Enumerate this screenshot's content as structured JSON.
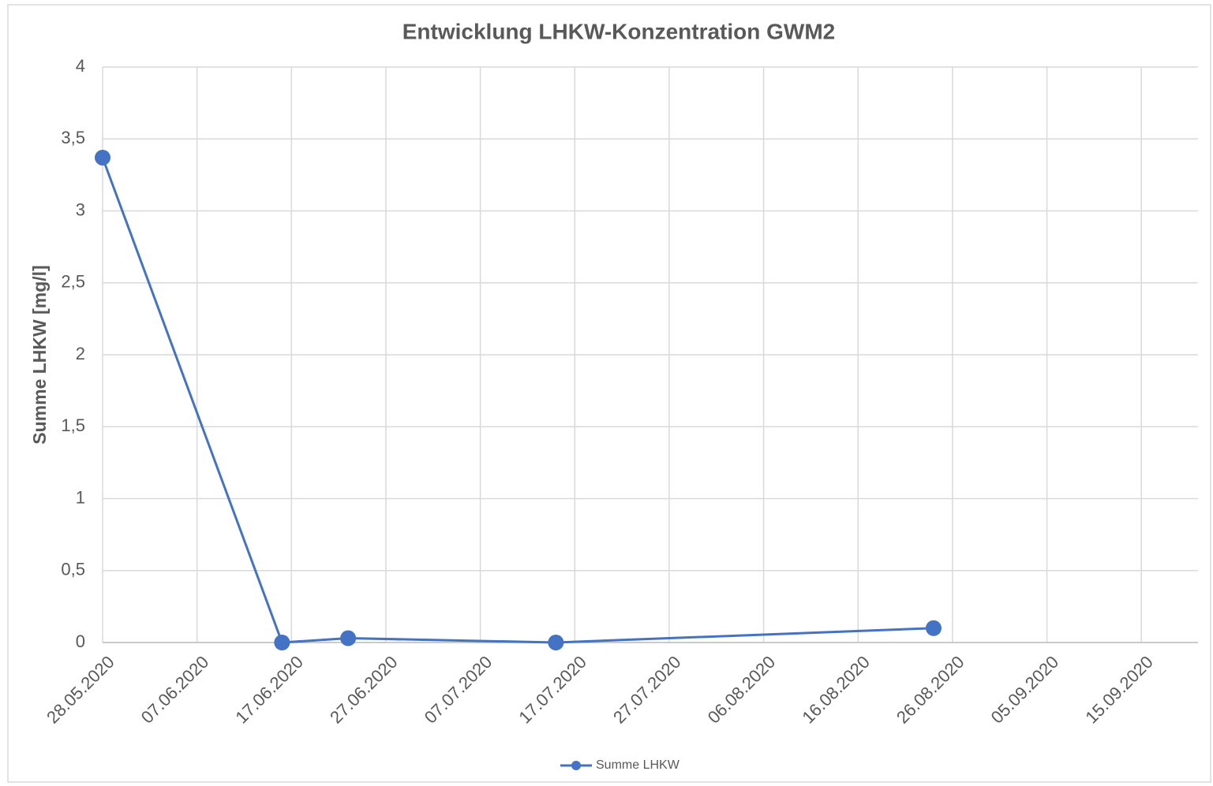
{
  "chart_data": {
    "type": "line",
    "title": "Entwicklung LHKW-Konzentration GWM2",
    "y_label": "Summe LHKW [mg/l]",
    "x": [
      "28.05.2020",
      "16.06.2020",
      "23.06.2020",
      "15.07.2020",
      "24.08.2020"
    ],
    "series": [
      {
        "name": "Summe LHKW",
        "color": "#4472c4",
        "values": [
          3.37,
          0,
          0.03,
          0,
          0.1
        ]
      }
    ],
    "xlim": [
      "28.05.2020",
      "21.09.2020"
    ],
    "xticks": [
      "28.05.2020",
      "07.06.2020",
      "17.06.2020",
      "27.06.2020",
      "07.07.2020",
      "17.07.2020",
      "27.07.2020",
      "06.08.2020",
      "16.08.2020",
      "26.08.2020",
      "05.09.2020",
      "15.09.2020"
    ],
    "ylim": [
      0,
      4
    ],
    "yticks": [
      0,
      {
        "value": 0.5,
        "label": "0,5"
      },
      1,
      {
        "value": 1.5,
        "label": "1,5"
      },
      2,
      {
        "value": 2.5,
        "label": "2,5"
      },
      3,
      {
        "value": 3.5,
        "label": "3,5"
      },
      4
    ],
    "grid": true,
    "legend": "bottom"
  }
}
